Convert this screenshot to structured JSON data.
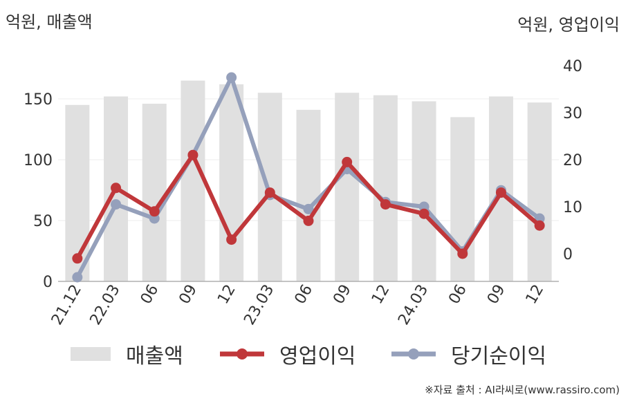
{
  "chart_data": {
    "type": "bar+line",
    "left_axis_title": "억원, 매출액",
    "right_axis_title": "억원, 영업이익",
    "categories": [
      "21.12",
      "22.03",
      "06",
      "09",
      "12",
      "23.03",
      "06",
      "09",
      "12",
      "24.03",
      "06",
      "09",
      "12"
    ],
    "left_ticks": [
      "0",
      "50",
      "100",
      "150"
    ],
    "right_ticks": [
      "0",
      "10",
      "20",
      "30",
      "40"
    ],
    "left_ylim": [
      0,
      170
    ],
    "right_ylim": [
      -6,
      40
    ],
    "grid": true,
    "legend_position": "bottom",
    "series": [
      {
        "name": "매출액",
        "axis": "left",
        "kind": "bar",
        "color": "#e0e0e0",
        "values": [
          145,
          152,
          146,
          165,
          162,
          155,
          141,
          155,
          153,
          148,
          135,
          152,
          147
        ]
      },
      {
        "name": "영업이익",
        "axis": "right",
        "kind": "line",
        "color": "#c0373a",
        "values": [
          -1,
          14,
          9,
          21,
          3,
          13,
          7,
          19.5,
          10.5,
          8.5,
          0,
          13,
          6
        ]
      },
      {
        "name": "당기순이익",
        "axis": "right",
        "kind": "line",
        "color": "#95a0bb",
        "values": [
          -5,
          10.5,
          7.5,
          21,
          37.5,
          12.5,
          9.5,
          18,
          11,
          10,
          0.5,
          13.5,
          7.5
        ]
      }
    ],
    "source": "※자료 출처 : AI라씨로(www.rassiro.com)"
  }
}
